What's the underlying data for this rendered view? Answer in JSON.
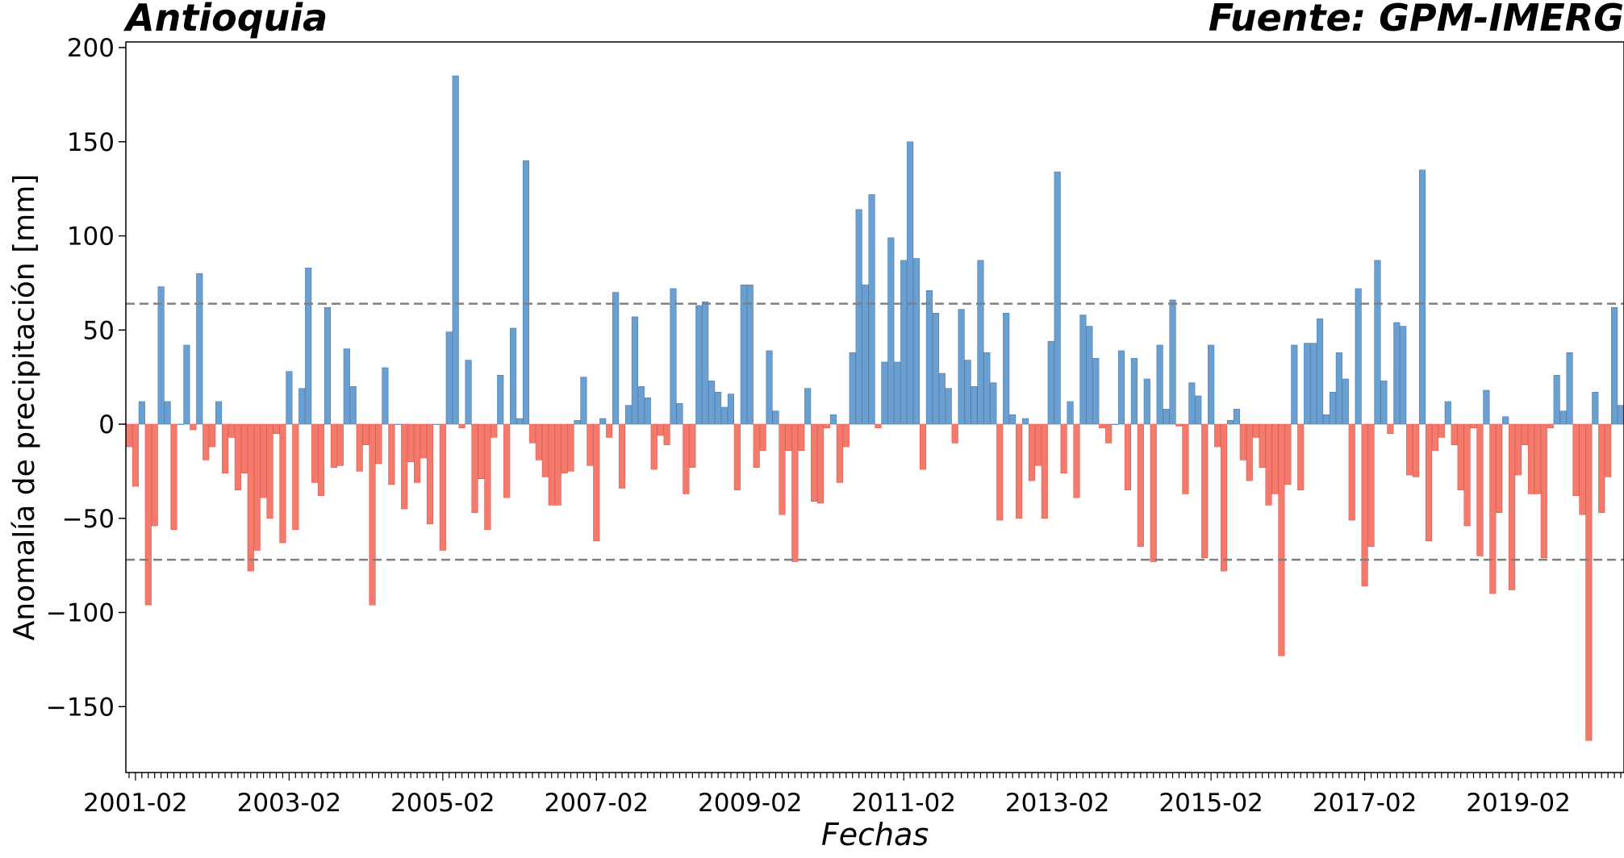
{
  "chart_data": {
    "type": "bar",
    "title_left": "Antioquia",
    "title_right": "Fuente: GPM-IMERG",
    "xlabel": "Fechas",
    "ylabel": "Anomalía de precipitación [mm]",
    "ylim": [
      -185,
      203
    ],
    "yticks": [
      -150,
      -100,
      -50,
      0,
      50,
      100,
      150,
      200
    ],
    "ytick_labels": [
      "−150",
      "−100",
      "−50",
      "0",
      "50",
      "100",
      "150",
      "200"
    ],
    "x_start": "2001-01",
    "xtick_labels": [
      "2001-02",
      "2003-02",
      "2005-02",
      "2007-02",
      "2009-02",
      "2011-02",
      "2013-02",
      "2015-02",
      "2017-02",
      "2019-02"
    ],
    "thresholds": [
      64,
      -72
    ],
    "threshold_color": "#808080",
    "positive_color": "#6a9fcf",
    "negative_color": "#f47a6d",
    "values": [
      -12,
      -33,
      12,
      -96,
      -54,
      73,
      12,
      -56,
      0,
      42,
      -3,
      80,
      -19,
      -12,
      12,
      -26,
      -7,
      -35,
      -26,
      -78,
      -67,
      -39,
      -50,
      -5,
      -63,
      28,
      -56,
      19,
      83,
      -31,
      -38,
      62,
      -23,
      -22,
      40,
      20,
      -25,
      -11,
      -96,
      -21,
      30,
      -32,
      0,
      -45,
      -20,
      -31,
      -18,
      -53,
      0,
      -67,
      49,
      185,
      -2,
      34,
      -47,
      -29,
      -56,
      -7,
      26,
      -39,
      51,
      3,
      140,
      -10,
      -19,
      -28,
      -43,
      -43,
      -26,
      -25,
      2,
      25,
      -22,
      -62,
      3,
      -7,
      70,
      -34,
      10,
      57,
      20,
      14,
      -24,
      -6,
      -11,
      72,
      11,
      -37,
      -23,
      63,
      65,
      23,
      17,
      9,
      16,
      -35,
      74,
      74,
      -23,
      -14,
      39,
      7,
      -48,
      -14,
      -73,
      -14,
      19,
      -41,
      -42,
      -2,
      5,
      -31,
      -12,
      38,
      114,
      74,
      122,
      -2,
      33,
      99,
      33,
      87,
      150,
      88,
      -24,
      71,
      59,
      27,
      19,
      -10,
      61,
      34,
      20,
      87,
      38,
      22,
      -51,
      59,
      5,
      -50,
      3,
      -30,
      -22,
      -50,
      44,
      134,
      -26,
      12,
      -39,
      58,
      52,
      35,
      -2,
      -10,
      0,
      39,
      -35,
      35,
      -65,
      24,
      -73,
      42,
      8,
      66,
      -1,
      -37,
      22,
      15,
      -71,
      42,
      -12,
      -78,
      2,
      8,
      -19,
      -30,
      -7,
      -23,
      -43,
      -37,
      -123,
      -32,
      42,
      -35,
      43,
      43,
      56,
      5,
      17,
      38,
      24,
      -51,
      72,
      -86,
      -65,
      87,
      23,
      -5,
      54,
      52,
      -27,
      -28,
      135,
      -62,
      -14,
      -7,
      12,
      -11,
      -35,
      -54,
      -2,
      -70,
      18,
      -90,
      -47,
      4,
      -88,
      -27,
      -11,
      -37,
      -37,
      -71,
      -2,
      26,
      7,
      38,
      -38,
      -48,
      -168,
      17,
      -47,
      -28,
      62,
      10
    ]
  }
}
